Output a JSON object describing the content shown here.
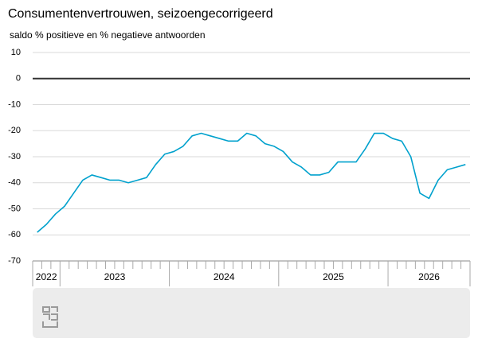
{
  "chart_data": {
    "type": "line",
    "title": "Consumentenvertrouwen, seizoengecorrigeerd",
    "subtitle": "saldo % positieve en % negatieve antwoorden",
    "x": [
      "2022",
      "2022",
      "2022",
      "2023",
      "2023",
      "2023",
      "2023",
      "2023",
      "2023",
      "2023",
      "2023",
      "2023",
      "2023",
      "2023",
      "2023",
      "2024",
      "2024",
      "2024",
      "2024",
      "2024",
      "2024",
      "2024",
      "2024",
      "2024",
      "2024",
      "2024",
      "2024",
      "2025",
      "2025",
      "2025",
      "2025",
      "2025",
      "2025",
      "2025",
      "2025",
      "2025",
      "2025",
      "2025",
      "2025",
      "2026",
      "2026",
      "2026",
      "2026",
      "2026",
      "2026",
      "2026",
      "2026",
      "2026"
    ],
    "values": [
      -59,
      -56,
      -52,
      -49,
      -44,
      -39,
      -37,
      -38,
      -39,
      -39,
      -40,
      -39,
      -38,
      -33,
      -29,
      -28,
      -26,
      -22,
      -21,
      -22,
      -23,
      -24,
      -24,
      -21,
      -22,
      -25,
      -26,
      -28,
      -32,
      -34,
      -37,
      -37,
      -36,
      -32,
      -32,
      -32,
      -27,
      -21,
      -21,
      -23,
      -24,
      -30,
      -44,
      -46,
      -39,
      -35,
      -34,
      -33
    ],
    "color": "#00a1cd",
    "ylim": [
      -70,
      10
    ],
    "yticks": [
      -70,
      -60,
      -50,
      -40,
      -30,
      -20,
      -10,
      0,
      10
    ],
    "grid": true
  }
}
